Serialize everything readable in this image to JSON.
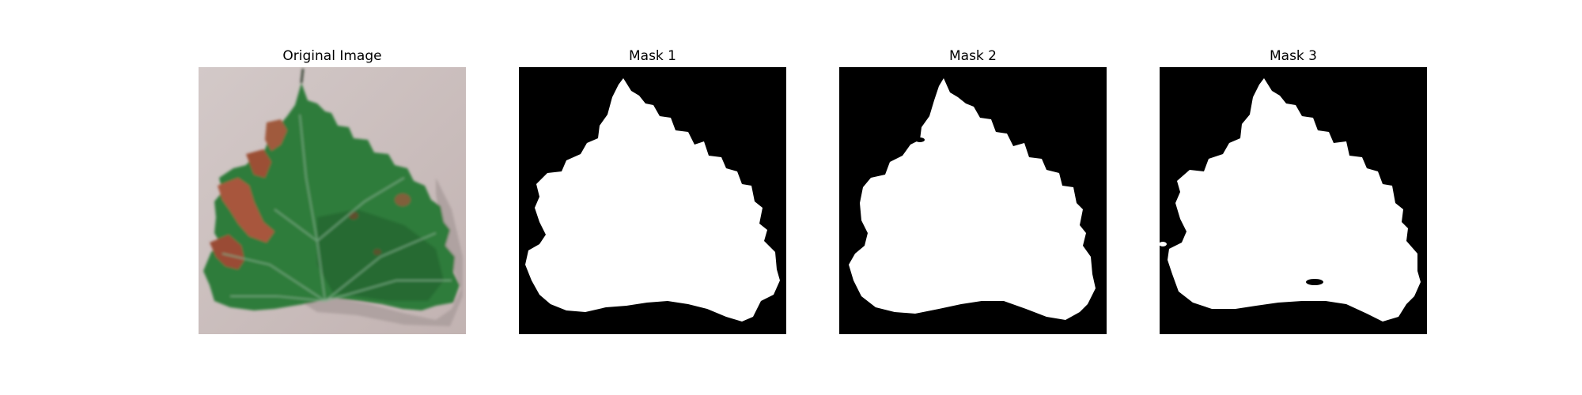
{
  "figure": {
    "panels": [
      {
        "title": "Original Image"
      },
      {
        "title": "Mask 1"
      },
      {
        "title": "Mask 2"
      },
      {
        "title": "Mask 3"
      }
    ]
  },
  "colors": {
    "background": "#ffffff",
    "paper_background": "#c9bcbc",
    "leaf_green": "#2f7b3a",
    "leaf_dark_green": "#1e5d2b",
    "leaf_vein": "#7fb08a",
    "lesion_brown": "#a8563c",
    "mask_background": "#000000",
    "mask_foreground": "#ffffff"
  }
}
